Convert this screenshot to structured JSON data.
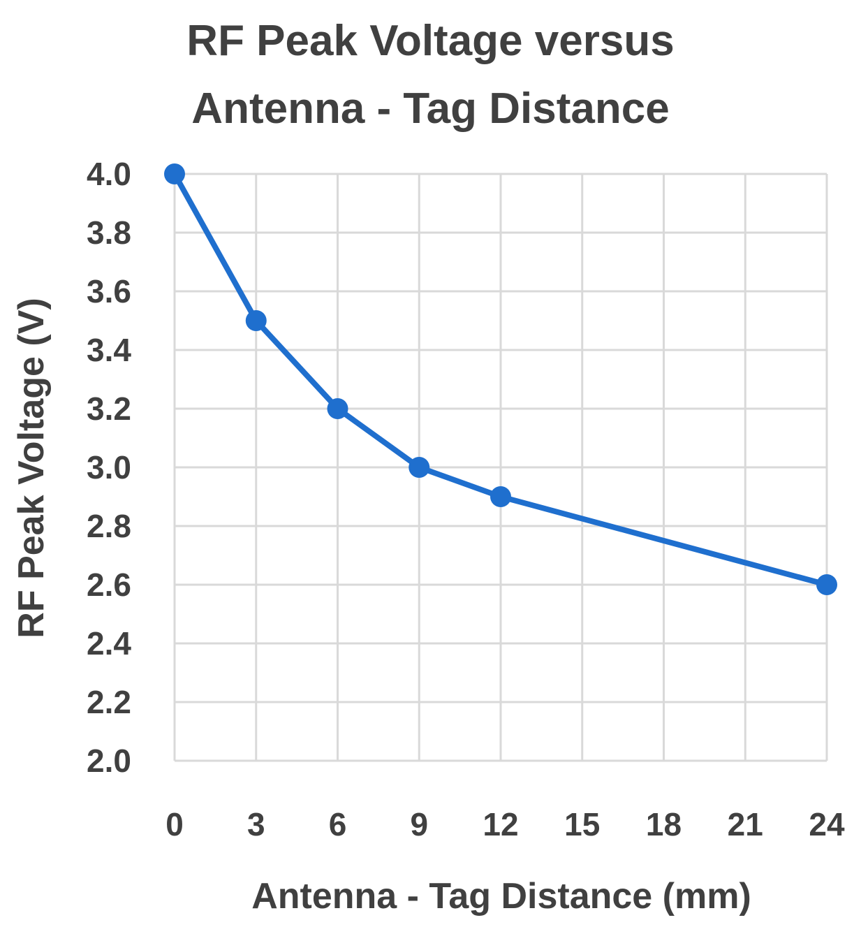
{
  "chart_data": {
    "type": "line",
    "title_lines": [
      "RF Peak Voltage versus",
      "Antenna - Tag Distance"
    ],
    "xlabel": "Antenna - Tag Distance (mm)",
    "ylabel": "RF Peak Voltage (V)",
    "x_ticks": [
      "0",
      "3",
      "6",
      "9",
      "12",
      "15",
      "18",
      "21",
      "24"
    ],
    "y_ticks": [
      "2.0",
      "2.2",
      "2.4",
      "2.6",
      "2.8",
      "3.0",
      "3.2",
      "3.4",
      "3.6",
      "3.8",
      "4.0"
    ],
    "xlim": [
      0,
      24
    ],
    "ylim": [
      2.0,
      4.0
    ],
    "grid": true,
    "series": [
      {
        "color": "#1f6fce",
        "x": [
          0,
          3,
          6,
          9,
          12,
          24
        ],
        "y": [
          4.0,
          3.5,
          3.2,
          3.0,
          2.9,
          2.6
        ]
      }
    ]
  }
}
